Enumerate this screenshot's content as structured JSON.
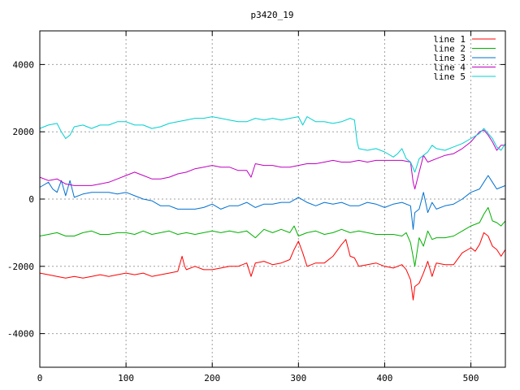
{
  "chart_data": {
    "type": "line",
    "title": "p3420_19",
    "xlabel": "",
    "ylabel": "",
    "xlim": [
      0,
      540
    ],
    "ylim": [
      -5000,
      5000
    ],
    "xticks": [
      0,
      100,
      200,
      300,
      400,
      500
    ],
    "yticks": [
      -4000,
      -2000,
      0,
      2000,
      4000
    ],
    "grid": true,
    "legend_position": "top-right",
    "series": [
      {
        "name": "line 1",
        "color": "#ff0000",
        "x": [
          0,
          10,
          20,
          30,
          40,
          50,
          60,
          70,
          80,
          90,
          100,
          110,
          120,
          130,
          140,
          150,
          160,
          165,
          168,
          170,
          180,
          190,
          200,
          210,
          220,
          230,
          240,
          245,
          250,
          260,
          270,
          280,
          290,
          295,
          300,
          305,
          310,
          320,
          330,
          340,
          350,
          355,
          360,
          365,
          370,
          380,
          390,
          400,
          410,
          420,
          425,
          430,
          433,
          435,
          440,
          445,
          450,
          455,
          460,
          470,
          480,
          490,
          500,
          505,
          510,
          515,
          520,
          525,
          530,
          535,
          540
        ],
        "y": [
          -2200,
          -2250,
          -2300,
          -2350,
          -2300,
          -2350,
          -2300,
          -2250,
          -2300,
          -2250,
          -2200,
          -2250,
          -2200,
          -2300,
          -2250,
          -2200,
          -2150,
          -1700,
          -2000,
          -2100,
          -2000,
          -2100,
          -2100,
          -2050,
          -2000,
          -2000,
          -1900,
          -2300,
          -1900,
          -1850,
          -1950,
          -1900,
          -1800,
          -1500,
          -1250,
          -1600,
          -2000,
          -1900,
          -1900,
          -1700,
          -1350,
          -1200,
          -1700,
          -1750,
          -2000,
          -1950,
          -1900,
          -2000,
          -2050,
          -1950,
          -2100,
          -2400,
          -3000,
          -2600,
          -2500,
          -2200,
          -1850,
          -2300,
          -1900,
          -1950,
          -1950,
          -1600,
          -1450,
          -1550,
          -1350,
          -1000,
          -1100,
          -1400,
          -1500,
          -1700,
          -1500
        ]
      },
      {
        "name": "line 2",
        "color": "#00b000",
        "x": [
          0,
          10,
          20,
          30,
          40,
          50,
          60,
          70,
          80,
          90,
          100,
          110,
          120,
          130,
          140,
          150,
          160,
          170,
          180,
          190,
          200,
          210,
          220,
          230,
          240,
          250,
          260,
          270,
          280,
          290,
          295,
          300,
          310,
          320,
          330,
          340,
          350,
          360,
          370,
          380,
          390,
          400,
          410,
          420,
          425,
          430,
          435,
          440,
          445,
          450,
          455,
          460,
          470,
          480,
          490,
          500,
          510,
          515,
          520,
          525,
          530,
          535,
          540
        ],
        "y": [
          -1100,
          -1050,
          -1000,
          -1100,
          -1100,
          -1000,
          -950,
          -1050,
          -1050,
          -1000,
          -1000,
          -1050,
          -950,
          -1050,
          -1000,
          -950,
          -1050,
          -1000,
          -1050,
          -1000,
          -950,
          -1000,
          -950,
          -1000,
          -950,
          -1150,
          -900,
          -1000,
          -900,
          -1000,
          -800,
          -1100,
          -1000,
          -950,
          -1050,
          -1000,
          -900,
          -1000,
          -950,
          -1000,
          -1050,
          -1050,
          -1050,
          -1100,
          -1000,
          -1300,
          -2000,
          -1150,
          -1400,
          -950,
          -1200,
          -1150,
          -1150,
          -1100,
          -950,
          -800,
          -700,
          -450,
          -250,
          -650,
          -700,
          -800,
          -650
        ]
      },
      {
        "name": "line 3",
        "color": "#0070d0",
        "x": [
          0,
          10,
          15,
          20,
          25,
          30,
          35,
          40,
          50,
          60,
          70,
          80,
          90,
          100,
          110,
          120,
          130,
          140,
          150,
          160,
          170,
          180,
          190,
          200,
          210,
          220,
          230,
          240,
          250,
          260,
          270,
          280,
          290,
          300,
          310,
          320,
          330,
          340,
          350,
          360,
          370,
          380,
          390,
          400,
          410,
          420,
          430,
          433,
          435,
          440,
          445,
          450,
          455,
          460,
          470,
          480,
          490,
          500,
          510,
          515,
          520,
          525,
          530,
          535,
          540
        ],
        "y": [
          350,
          500,
          300,
          200,
          550,
          100,
          550,
          50,
          150,
          200,
          200,
          200,
          150,
          200,
          100,
          0,
          -50,
          -200,
          -200,
          -300,
          -300,
          -300,
          -250,
          -150,
          -300,
          -200,
          -200,
          -100,
          -250,
          -150,
          -150,
          -100,
          -100,
          50,
          -100,
          -200,
          -100,
          -150,
          -100,
          -200,
          -200,
          -100,
          -150,
          -250,
          -150,
          -100,
          -200,
          -900,
          -400,
          -300,
          200,
          -400,
          -100,
          -300,
          -200,
          -150,
          0,
          200,
          300,
          500,
          700,
          500,
          300,
          350,
          400
        ]
      },
      {
        "name": "line 4",
        "color": "#c000c0",
        "x": [
          0,
          10,
          20,
          30,
          40,
          50,
          60,
          70,
          80,
          90,
          100,
          110,
          120,
          130,
          140,
          150,
          160,
          170,
          180,
          190,
          200,
          210,
          220,
          230,
          240,
          245,
          250,
          260,
          270,
          280,
          290,
          300,
          310,
          320,
          330,
          340,
          350,
          360,
          370,
          380,
          390,
          400,
          410,
          420,
          430,
          433,
          435,
          440,
          445,
          450,
          460,
          470,
          480,
          490,
          500,
          510,
          515,
          520,
          525,
          530,
          535,
          540
        ],
        "y": [
          650,
          550,
          600,
          450,
          400,
          400,
          400,
          450,
          500,
          600,
          700,
          800,
          700,
          600,
          600,
          650,
          750,
          800,
          900,
          950,
          1000,
          950,
          950,
          850,
          850,
          650,
          1050,
          1000,
          1000,
          950,
          950,
          1000,
          1050,
          1050,
          1100,
          1150,
          1100,
          1100,
          1150,
          1100,
          1150,
          1150,
          1150,
          1150,
          1100,
          500,
          300,
          800,
          1300,
          1100,
          1200,
          1300,
          1350,
          1500,
          1700,
          2000,
          2050,
          1900,
          1700,
          1450,
          1600,
          1600
        ]
      },
      {
        "name": "line 5",
        "color": "#00d0d0",
        "x": [
          0,
          10,
          20,
          25,
          30,
          35,
          40,
          50,
          60,
          70,
          80,
          90,
          100,
          110,
          120,
          130,
          140,
          150,
          160,
          170,
          180,
          190,
          200,
          210,
          220,
          230,
          240,
          250,
          260,
          270,
          280,
          290,
          300,
          305,
          310,
          320,
          330,
          340,
          350,
          360,
          365,
          368,
          370,
          380,
          390,
          400,
          410,
          415,
          420,
          425,
          430,
          435,
          440,
          445,
          450,
          455,
          460,
          470,
          480,
          490,
          500,
          510,
          515,
          520,
          525,
          530,
          535,
          540
        ],
        "y": [
          2100,
          2200,
          2250,
          2000,
          1800,
          1900,
          2150,
          2200,
          2100,
          2200,
          2200,
          2300,
          2300,
          2200,
          2200,
          2100,
          2150,
          2250,
          2300,
          2350,
          2400,
          2400,
          2450,
          2400,
          2350,
          2300,
          2300,
          2400,
          2350,
          2400,
          2350,
          2400,
          2450,
          2200,
          2450,
          2300,
          2300,
          2250,
          2300,
          2400,
          2350,
          1700,
          1500,
          1450,
          1500,
          1400,
          1250,
          1350,
          1500,
          1200,
          1100,
          800,
          1200,
          1300,
          1400,
          1600,
          1500,
          1450,
          1550,
          1650,
          1800,
          1950,
          2100,
          1950,
          1800,
          1550,
          1450,
          1650
        ]
      }
    ]
  }
}
